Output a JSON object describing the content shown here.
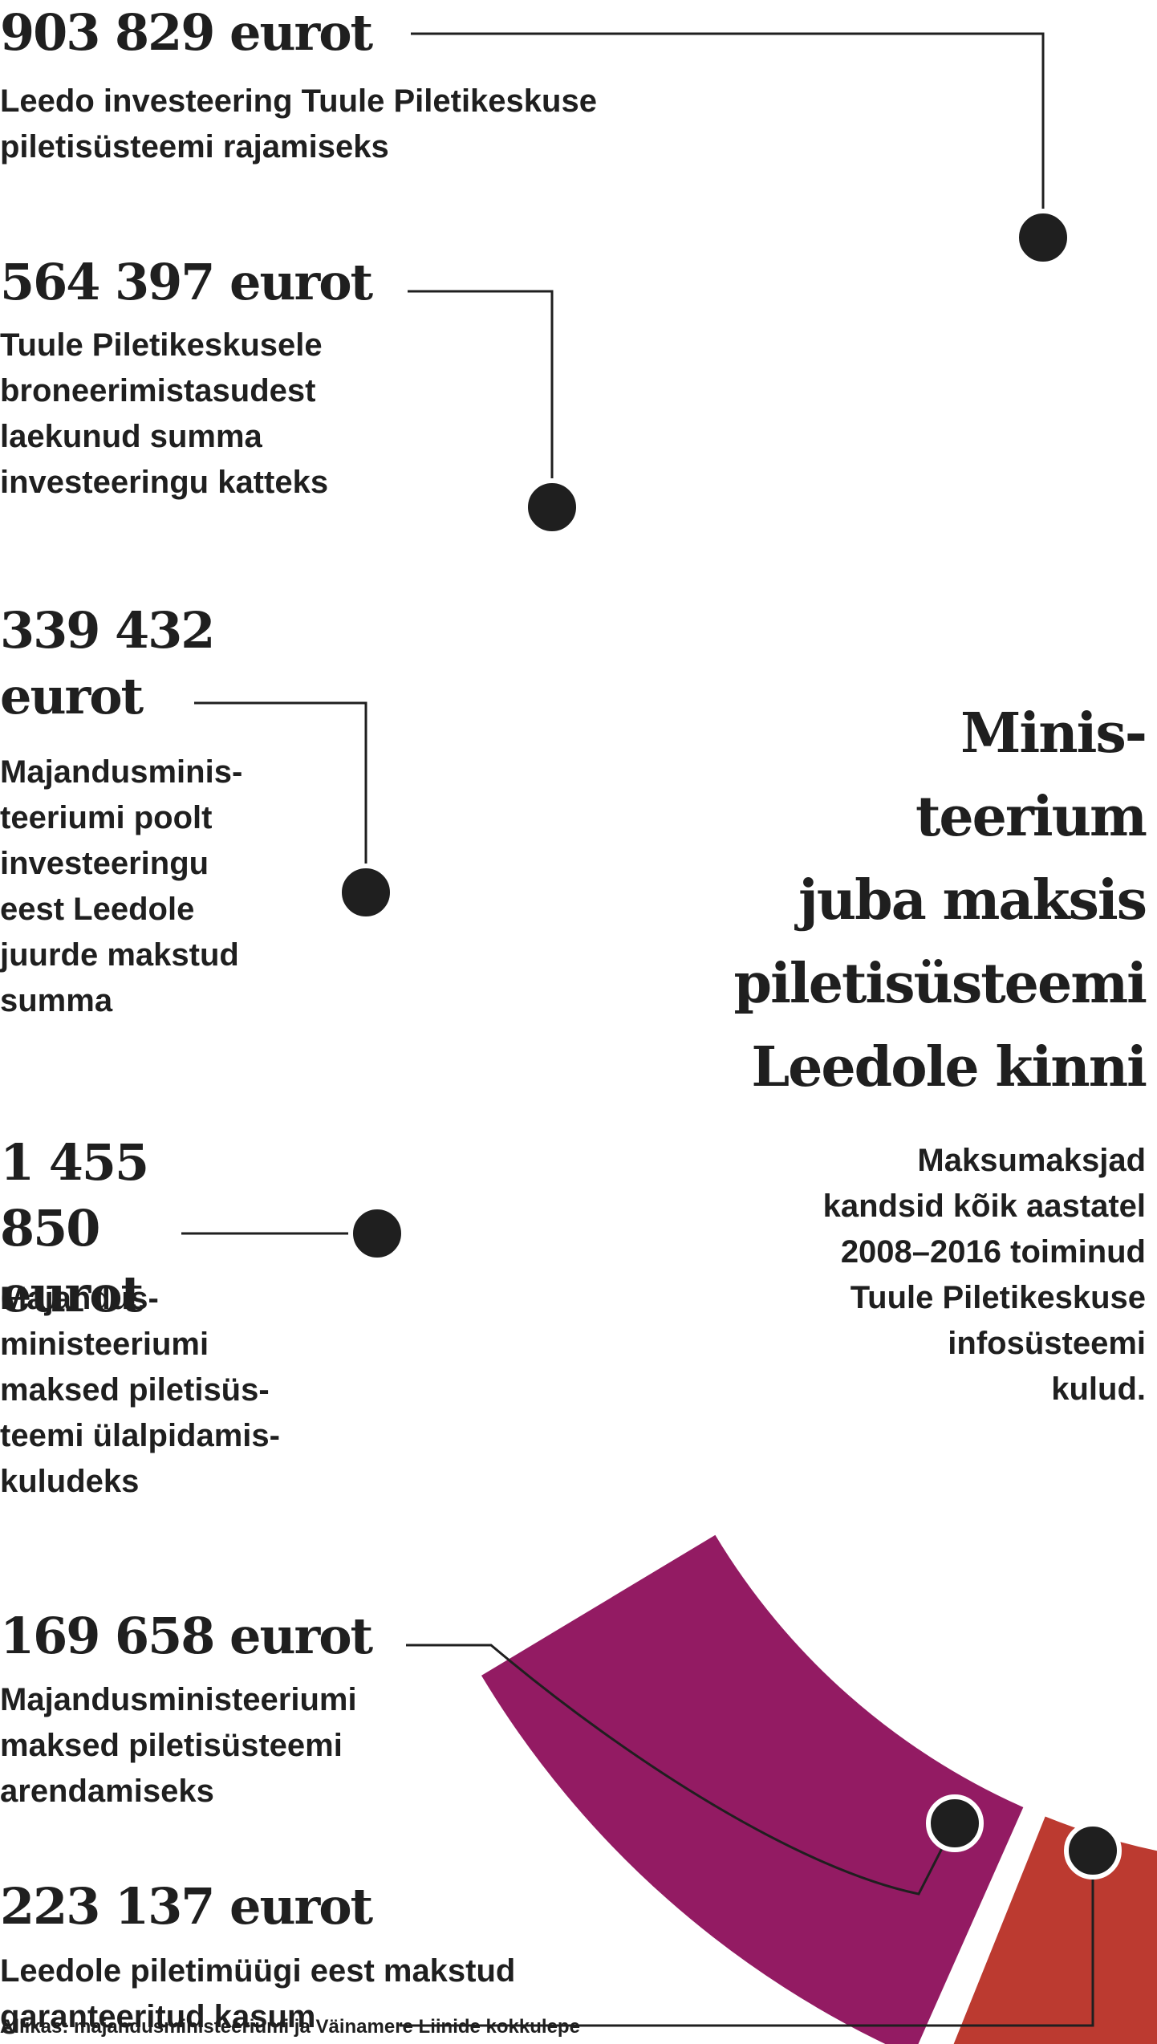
{
  "chart_data": {
    "type": "pie",
    "style": "donut",
    "title": "Minis-\nteerium\njuba maksis\npiletisüsteemi\nLeedole kinni",
    "subtitle": "Maksumaksjad\nkandsid kõik aastatel\n2008–2016 toiminud\nTuule Piletikeskuse\ninfosüsteemi\nkulud.",
    "source": "Allikas: majandusministeeriumi ja Väinamere Liinide kokkulepe",
    "unit": "eurot",
    "segments": [
      {
        "id": "leedo-investeering",
        "label": "Leedo investeering Tuule Piletikeskuse\npiletisüsteemi rajamiseks",
        "amount_text": "903 829 eurot",
        "value": 903829,
        "color": "#931b63"
      },
      {
        "id": "broneerimistasud",
        "label": "Tuule Piletikeskusele\nbroneerimistasudest\nlaekunud summa\ninvesteeringu katteks",
        "amount_text": "564 397 eurot",
        "value": 564397,
        "color": "#bc3a30"
      },
      {
        "id": "juurde-makstud",
        "label": "Majandusminis-\nteeriumi poolt\ninvesteeringu\neest Leedole\njuurde makstud\nsumma",
        "amount_text": "339 432 eurot",
        "value": 339432,
        "color": "#c65d31"
      },
      {
        "id": "ulalpidamiskulud",
        "label": "Majandus-\nministeeriumi\nmaksed piletisüs-\nteemi ülalpidamis-\nkuludeks",
        "amount_text": "1 455 850 eurot",
        "value": 1455850,
        "color": "#dda47f"
      },
      {
        "id": "arendamine",
        "label": "Majandusministeeriumi\nmaksed piletisüsteemi\narendamiseks",
        "amount_text": "169 658 eurot",
        "value": 169658,
        "color": "#e6cf4e"
      },
      {
        "id": "garanteeritud-kasum",
        "label": "Leedole piletimüügi eest makstud\ngaranteeritud kasum",
        "amount_text": "223 137 eurot",
        "value": 223137,
        "color": "#fbeb4f"
      }
    ]
  }
}
